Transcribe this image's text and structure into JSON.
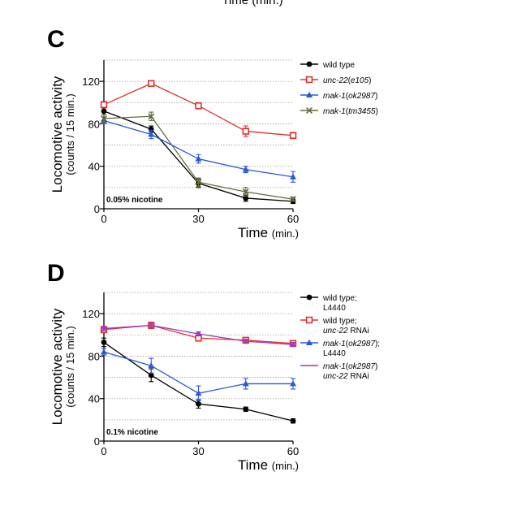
{
  "top_fragment": "Time (min.)",
  "chart_data": [
    {
      "type": "line",
      "panel": "C",
      "annotation": "0.05% nicotine",
      "ylabel": "Locomotive activity",
      "ylabel_sub": "(counts / 15 min.)",
      "xlabel": "Time",
      "xlabel_unit": "(min.)",
      "xlim": [
        0,
        60
      ],
      "ylim": [
        0,
        140
      ],
      "xticks": [
        0,
        30,
        60
      ],
      "yticks": [
        0,
        40,
        80,
        120
      ],
      "grid": "dotted horizontal",
      "legend_position": "right",
      "series": [
        {
          "name": "wild type",
          "legend": [
            "wild type"
          ],
          "color": "#000000",
          "marker": "circle",
          "x": [
            0,
            15,
            30,
            45,
            60
          ],
          "y": [
            92,
            75,
            24,
            10,
            7
          ],
          "err": [
            3,
            3,
            4,
            3,
            2
          ]
        },
        {
          "name": "unc-22(e105)",
          "legend": [
            "unc-22(e105)"
          ],
          "color": "#e3302b",
          "marker": "open-square",
          "x": [
            0,
            15,
            30,
            45,
            60
          ],
          "y": [
            98,
            118,
            97,
            73,
            69
          ],
          "err": [
            3,
            2,
            3,
            5,
            3
          ]
        },
        {
          "name": "mak-1(ok2987)",
          "legend": [
            "mak-1(ok2987)"
          ],
          "color": "#2857d9",
          "marker": "triangle",
          "x": [
            0,
            15,
            30,
            45,
            60
          ],
          "y": [
            83,
            70,
            47,
            37,
            30
          ],
          "err": [
            3,
            4,
            4,
            3,
            5
          ]
        },
        {
          "name": "mak-1(tm3455)",
          "legend": [
            "mak-1(tm3455)"
          ],
          "color": "#5e6b3a",
          "marker": "x",
          "x": [
            0,
            15,
            30,
            45,
            60
          ],
          "y": [
            85,
            87,
            25,
            16,
            9
          ],
          "err": [
            4,
            4,
            4,
            4,
            2
          ]
        }
      ]
    },
    {
      "type": "line",
      "panel": "D",
      "annotation": "0.1% nicotine",
      "ylabel": "Locomotive activity",
      "ylabel_sub": "(counts / 15 min.)",
      "xlabel": "Time",
      "xlabel_unit": "(min.)",
      "xlim": [
        0,
        60
      ],
      "ylim": [
        0,
        140
      ],
      "xticks": [
        0,
        30,
        60
      ],
      "yticks": [
        0,
        40,
        80,
        120
      ],
      "grid": "dotted horizontal",
      "legend_position": "right",
      "series": [
        {
          "name": "wild type; L4440",
          "legend": [
            "wild type;",
            "L4440"
          ],
          "color": "#000000",
          "marker": "circle",
          "x": [
            0,
            15,
            30,
            45,
            60
          ],
          "y": [
            93,
            62,
            35,
            30,
            19
          ],
          "err": [
            4,
            6,
            4,
            2,
            2
          ]
        },
        {
          "name": "wild type; unc-22 RNAi",
          "legend": [
            "wild type;",
            "unc-22 RNAi"
          ],
          "color": "#e3302b",
          "marker": "open-square",
          "x": [
            0,
            15,
            30,
            45,
            60
          ],
          "y": [
            105,
            109,
            97,
            95,
            92
          ],
          "err": [
            3,
            3,
            3,
            2,
            2
          ]
        },
        {
          "name": "mak-1(ok2987); L4440",
          "legend": [
            "mak-1(ok2987);",
            "L4440"
          ],
          "color": "#2857d9",
          "marker": "triangle",
          "x": [
            0,
            15,
            30,
            45,
            60
          ],
          "y": [
            84,
            71,
            45,
            54,
            54
          ],
          "err": [
            3,
            7,
            7,
            5,
            5
          ]
        },
        {
          "name": "mak-1(ok2987) unc-22 RNAi",
          "legend": [
            "mak-1(ok2987)",
            "unc-22 RNAi"
          ],
          "color": "#9b35c4",
          "marker": "none",
          "x": [
            0,
            15,
            30,
            45,
            60
          ],
          "y": [
            106,
            109,
            101,
            94,
            91
          ],
          "err": [
            2,
            2,
            2,
            2,
            2
          ]
        }
      ]
    }
  ]
}
